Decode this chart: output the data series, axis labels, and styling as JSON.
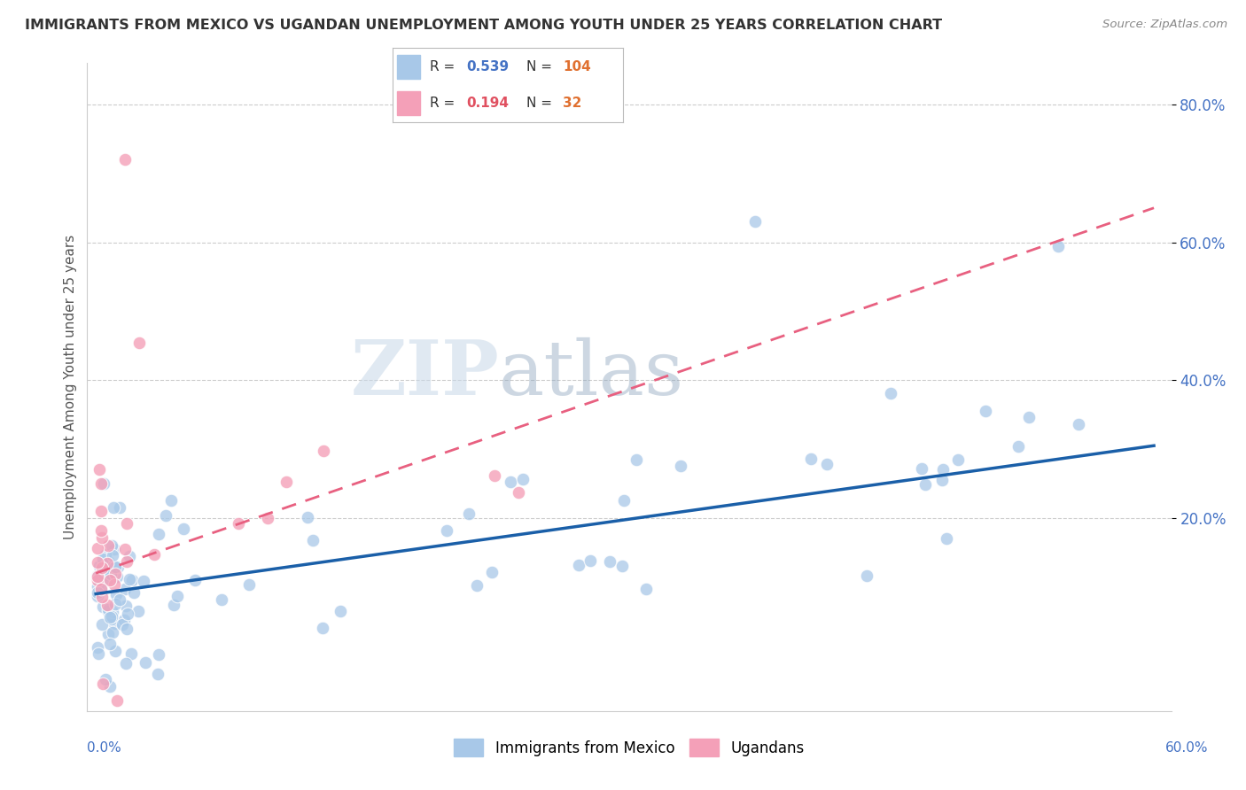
{
  "title": "IMMIGRANTS FROM MEXICO VS UGANDAN UNEMPLOYMENT AMONG YOUTH UNDER 25 YEARS CORRELATION CHART",
  "source": "Source: ZipAtlas.com",
  "xlabel_bottom_left": "0.0%",
  "xlabel_bottom_right": "60.0%",
  "ylabel": "Unemployment Among Youth under 25 years",
  "ytick_values": [
    0.2,
    0.4,
    0.6,
    0.8
  ],
  "ytick_labels": [
    "20.0%",
    "40.0%",
    "60.0%",
    "80.0%"
  ],
  "xmin": -0.005,
  "xmax": 0.62,
  "ymin": -0.08,
  "ymax": 0.86,
  "legend_label1": "Immigrants from Mexico",
  "legend_label2": "Ugandans",
  "blue_color": "#a8c8e8",
  "pink_color": "#f4a0b8",
  "blue_line_color": "#1a5fa8",
  "pink_line_color": "#e86080",
  "pink_line_dashed": true,
  "watermark_zip": "ZIP",
  "watermark_atlas": "atlas",
  "grid_color": "#cccccc",
  "grid_style": "--",
  "bg_color": "#ffffff",
  "legend_box_color": "#ffffff",
  "legend_border_color": "#aaaaaa",
  "title_color": "#333333",
  "source_color": "#888888",
  "tick_label_color": "#4472c4",
  "axis_label_color": "#555555",
  "blue_trend_x0": 0.0,
  "blue_trend_y0": 0.09,
  "blue_trend_x1": 0.61,
  "blue_trend_y1": 0.305,
  "pink_trend_x0": 0.0,
  "pink_trend_y0": 0.12,
  "pink_trend_x1": 0.61,
  "pink_trend_y1": 0.65
}
